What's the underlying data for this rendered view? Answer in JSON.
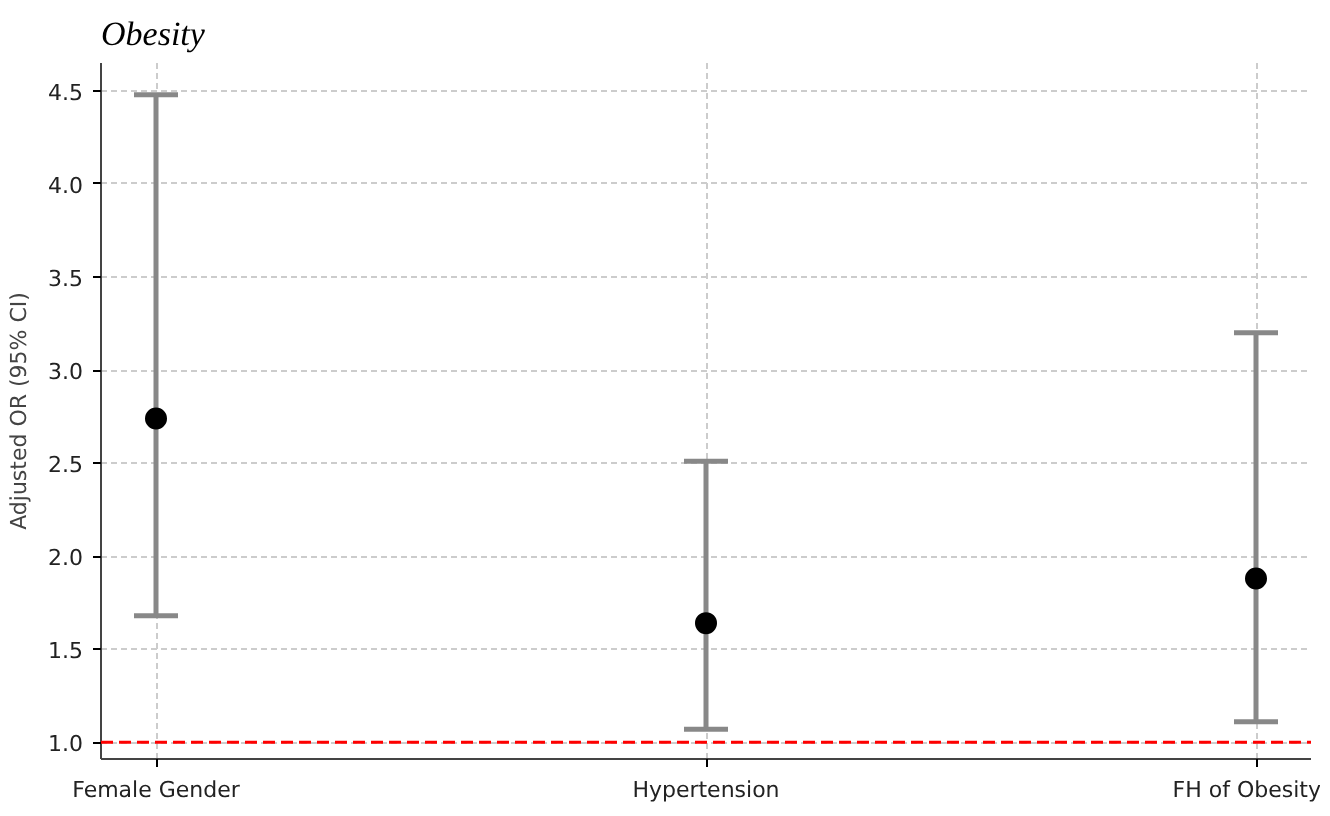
{
  "chart_data": {
    "type": "scatter",
    "title": "Obesity",
    "ylabel": "Adjusted OR (95% CI)",
    "categories": [
      "Female Gender",
      "Hypertension",
      "FH of Obesity"
    ],
    "series": [
      {
        "color": "#000000",
        "values": [
          2.74,
          1.64,
          1.88
        ],
        "errors": [
          [
            1.68,
            4.48
          ],
          [
            1.07,
            2.51
          ],
          [
            1.11,
            3.2
          ]
        ]
      }
    ],
    "ylim": [
      0.91,
      4.65
    ],
    "yticks": [
      {
        "value": 1,
        "label": "1.0"
      },
      1.5,
      {
        "value": 2,
        "label": "2.0"
      },
      2.5,
      {
        "value": 3,
        "label": "3.0"
      },
      3.5,
      {
        "value": 4,
        "label": "4.0"
      },
      4.5
    ],
    "ref_lines": [
      {
        "axis": "y",
        "value": 1.0,
        "color": "#ff0000",
        "line_style": "dashed"
      }
    ],
    "grid": true,
    "marker": "circle"
  }
}
